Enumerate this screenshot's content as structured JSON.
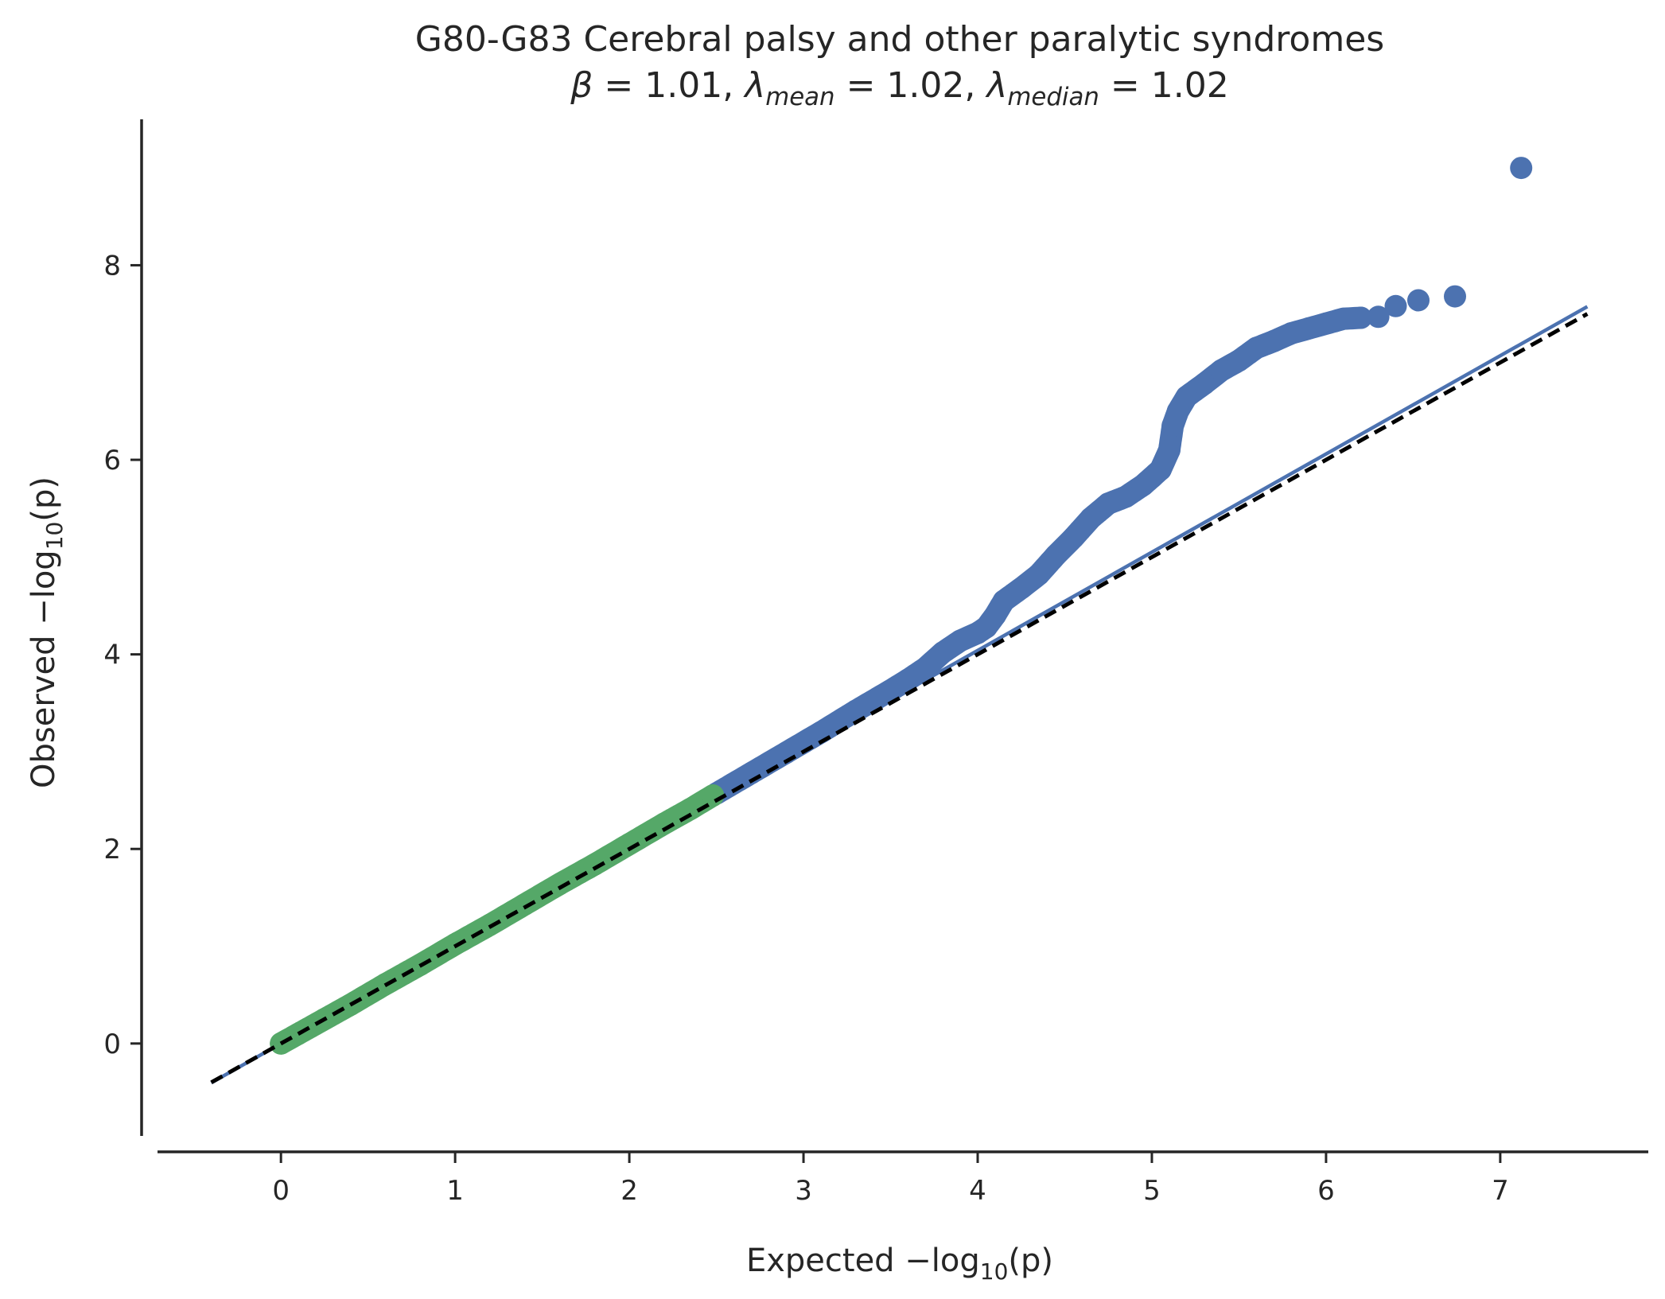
{
  "chart_data": {
    "type": "scatter",
    "title": "G80-G83 Cerebral palsy and other paralytic syndromes",
    "subtitle": {
      "beta_symbol": "β",
      "beta_value": "1.01",
      "lambda_symbol": "λ",
      "lambda_mean_sub": "mean",
      "lambda_mean_value": "1.02",
      "lambda_median_sub": "median",
      "lambda_median_value": "1.02"
    },
    "xlabel": {
      "prefix": "Expected −log",
      "sub": "10",
      "suffix": "(p)"
    },
    "ylabel": {
      "prefix": "Observed −log",
      "sub": "10",
      "suffix": "(p)"
    },
    "xlim": [
      -0.8,
      7.85
    ],
    "ylim": [
      -0.95,
      9.5
    ],
    "xticks": [
      0,
      1,
      2,
      3,
      4,
      5,
      6,
      7
    ],
    "yticks": [
      0,
      2,
      4,
      6,
      8
    ],
    "grid": false,
    "colors": {
      "significant": "#4c72b0",
      "null": "#55a868",
      "fit": "#4c72b0",
      "reference": "#000000",
      "axis": "#262626"
    },
    "series": [
      {
        "role": "null-range",
        "color": "#55a868",
        "points": [
          [
            0,
            0
          ],
          [
            0.1,
            0.1
          ],
          [
            0.25,
            0.25
          ],
          [
            0.4,
            0.4
          ],
          [
            0.6,
            0.61
          ],
          [
            0.8,
            0.81
          ],
          [
            1.0,
            1.02
          ],
          [
            1.2,
            1.22
          ],
          [
            1.4,
            1.43
          ],
          [
            1.6,
            1.64
          ],
          [
            1.8,
            1.84
          ],
          [
            2.0,
            2.05
          ],
          [
            2.2,
            2.26
          ],
          [
            2.35,
            2.41
          ],
          [
            2.48,
            2.55
          ]
        ]
      },
      {
        "role": "observed",
        "color": "#4c72b0",
        "points": [
          [
            2.5,
            2.57
          ],
          [
            2.7,
            2.78
          ],
          [
            2.9,
            2.99
          ],
          [
            3.1,
            3.2
          ],
          [
            3.3,
            3.42
          ],
          [
            3.5,
            3.63
          ],
          [
            3.6,
            3.74
          ],
          [
            3.7,
            3.86
          ],
          [
            3.8,
            4.02
          ],
          [
            3.9,
            4.14
          ],
          [
            4.0,
            4.22
          ],
          [
            4.05,
            4.28
          ],
          [
            4.1,
            4.4
          ],
          [
            4.15,
            4.55
          ],
          [
            4.25,
            4.68
          ],
          [
            4.35,
            4.82
          ],
          [
            4.45,
            5.02
          ],
          [
            4.55,
            5.2
          ],
          [
            4.65,
            5.4
          ],
          [
            4.75,
            5.55
          ],
          [
            4.85,
            5.62
          ],
          [
            4.95,
            5.74
          ],
          [
            5.0,
            5.82
          ],
          [
            5.05,
            5.9
          ],
          [
            5.1,
            6.1
          ],
          [
            5.12,
            6.35
          ],
          [
            5.15,
            6.5
          ],
          [
            5.2,
            6.65
          ],
          [
            5.3,
            6.78
          ],
          [
            5.4,
            6.92
          ],
          [
            5.5,
            7.02
          ],
          [
            5.6,
            7.15
          ],
          [
            5.7,
            7.22
          ],
          [
            5.8,
            7.3
          ],
          [
            5.9,
            7.35
          ],
          [
            6.0,
            7.4
          ],
          [
            6.1,
            7.45
          ],
          [
            6.2,
            7.46
          ],
          [
            6.3,
            7.47
          ],
          [
            6.4,
            7.58
          ],
          [
            6.53,
            7.64
          ],
          [
            6.74,
            7.68
          ],
          [
            7.12,
            9.0
          ]
        ]
      }
    ],
    "fit_line": {
      "x": [
        -0.4,
        7.5
      ],
      "slope": 1.01
    },
    "reference_line": {
      "x": [
        -0.4,
        7.5
      ],
      "slope": 1.0
    }
  }
}
